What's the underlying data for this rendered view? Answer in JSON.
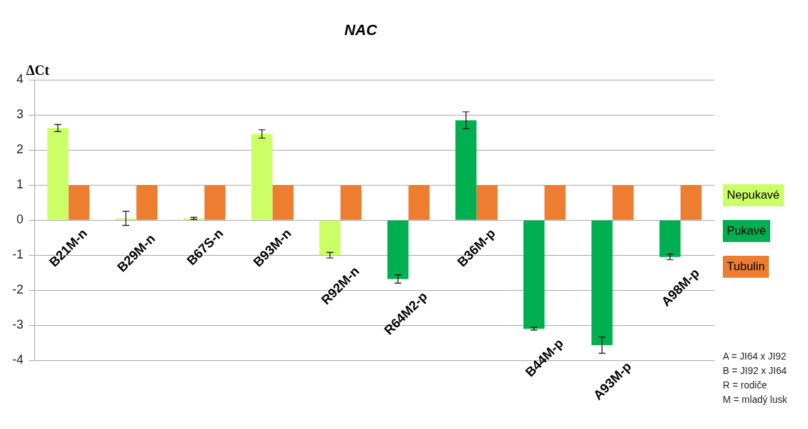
{
  "chart_data": {
    "type": "bar",
    "title": "NAC",
    "ylabel": "ΔCt",
    "categories": [
      "B21M-n",
      "B29M-n",
      "B67S-n",
      "B93M-n",
      "R92M-n",
      "R64M2-p",
      "B36M-p",
      "B44M-p",
      "A93M-p",
      "A98M-p"
    ],
    "series": [
      {
        "name": "Nepukavé",
        "color": "#ccff66",
        "values": [
          2.63,
          0.05,
          0.05,
          2.46,
          -1.0,
          null,
          null,
          null,
          null,
          null
        ],
        "errors": [
          0.1,
          0.2,
          0.03,
          0.12,
          0.08,
          null,
          null,
          null,
          null,
          null
        ]
      },
      {
        "name": "Pukavé",
        "color": "#00b050",
        "values": [
          null,
          null,
          null,
          null,
          null,
          -1.68,
          2.85,
          -3.1,
          -3.57,
          -1.05
        ],
        "errors": [
          null,
          null,
          null,
          null,
          null,
          0.12,
          0.24,
          0.04,
          0.23,
          0.08
        ]
      },
      {
        "name": "Tubulin",
        "color": "#ed7d31",
        "values": [
          1,
          1,
          1,
          1,
          1,
          1,
          1,
          1,
          1,
          1
        ]
      }
    ],
    "ylim": [
      -4,
      4
    ],
    "yticks": [
      -4,
      -3,
      -2,
      -1,
      0,
      1,
      2,
      3,
      4
    ],
    "grid": "y",
    "legend": "right",
    "annotations": [
      "A = JI64 x JI92",
      "B = JI92 x JI64",
      "R = rodiče",
      "M = mladý lusk"
    ]
  }
}
